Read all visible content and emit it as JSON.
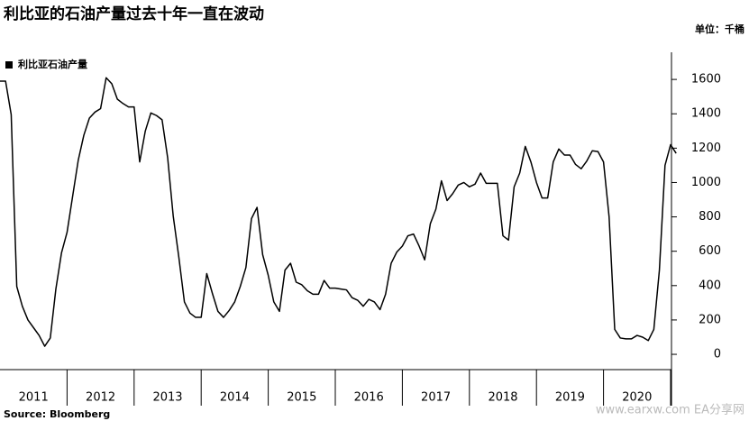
{
  "chart_data": {
    "type": "line",
    "title": "利比亚的石油产量过去十年一直在波动",
    "unit": "单位：千桶",
    "source": "Source: Bloomberg",
    "watermark": "www.earxw.com EA分享网",
    "x": [
      2011,
      2011.083,
      2011.167,
      2011.25,
      2011.333,
      2011.417,
      2011.5,
      2011.583,
      2011.667,
      2011.75,
      2011.833,
      2011.917,
      2012,
      2012.083,
      2012.167,
      2012.25,
      2012.333,
      2012.417,
      2012.5,
      2012.583,
      2012.667,
      2012.75,
      2012.833,
      2012.917,
      2013,
      2013.083,
      2013.167,
      2013.25,
      2013.333,
      2013.417,
      2013.5,
      2013.583,
      2013.667,
      2013.75,
      2013.833,
      2013.917,
      2014,
      2014.083,
      2014.167,
      2014.25,
      2014.333,
      2014.417,
      2014.5,
      2014.583,
      2014.667,
      2014.75,
      2014.833,
      2014.917,
      2015,
      2015.083,
      2015.167,
      2015.25,
      2015.333,
      2015.417,
      2015.5,
      2015.583,
      2015.667,
      2015.75,
      2015.833,
      2015.917,
      2016,
      2016.083,
      2016.167,
      2016.25,
      2016.333,
      2016.417,
      2016.5,
      2016.583,
      2016.667,
      2016.75,
      2016.833,
      2016.917,
      2017,
      2017.083,
      2017.167,
      2017.25,
      2017.333,
      2017.417,
      2017.5,
      2017.583,
      2017.667,
      2017.75,
      2017.833,
      2017.917,
      2018,
      2018.083,
      2018.167,
      2018.25,
      2018.333,
      2018.417,
      2018.5,
      2018.583,
      2018.667,
      2018.75,
      2018.833,
      2018.917,
      2019,
      2019.083,
      2019.167,
      2019.25,
      2019.333,
      2019.417,
      2019.5,
      2019.583,
      2019.667,
      2019.75,
      2019.833,
      2019.917,
      2020,
      2020.083,
      2020.167,
      2020.25,
      2020.333,
      2020.417,
      2020.5,
      2020.583,
      2020.667,
      2020.75,
      2020.833,
      2020.917,
      2021,
      2021.083
    ],
    "series": [
      {
        "name": "利比亚石油产量",
        "color": "#000000",
        "values": [
          1590,
          1590,
          1395,
          395,
          280,
          200,
          155,
          110,
          47,
          95,
          380,
          590,
          710,
          920,
          1130,
          1275,
          1375,
          1410,
          1430,
          1610,
          1575,
          1485,
          1460,
          1440,
          1440,
          1120,
          1300,
          1405,
          1390,
          1365,
          1145,
          805,
          565,
          305,
          240,
          215,
          215,
          470,
          355,
          250,
          215,
          255,
          305,
          395,
          505,
          790,
          855,
          580,
          460,
          305,
          250,
          490,
          530,
          420,
          405,
          370,
          350,
          350,
          430,
          385,
          385,
          380,
          375,
          330,
          315,
          280,
          320,
          305,
          260,
          350,
          530,
          595,
          630,
          690,
          700,
          630,
          550,
          760,
          845,
          1010,
          895,
          935,
          985,
          1000,
          975,
          990,
          1055,
          995,
          995,
          995,
          690,
          665,
          975,
          1055,
          1210,
          1120,
          1000,
          910,
          910,
          1120,
          1195,
          1160,
          1160,
          1105,
          1080,
          1125,
          1185,
          1180,
          1120,
          800,
          145,
          95,
          90,
          90,
          110,
          100,
          80,
          145,
          490,
          1100,
          1220,
          1170
        ]
      }
    ],
    "xlim": [
      2011,
      2021
    ],
    "xticks": [
      {
        "value": 2011.5,
        "label": "2011"
      },
      {
        "value": 2012.5,
        "label": "2012"
      },
      {
        "value": 2013.5,
        "label": "2013"
      },
      {
        "value": 2014.5,
        "label": "2014"
      },
      {
        "value": 2015.5,
        "label": "2015"
      },
      {
        "value": 2016.5,
        "label": "2016"
      },
      {
        "value": 2017.5,
        "label": "2017"
      },
      {
        "value": 2018.5,
        "label": "2018"
      },
      {
        "value": 2019.5,
        "label": "2019"
      },
      {
        "value": 2020.5,
        "label": "2020"
      }
    ],
    "ylim": [
      -89,
      1758
    ],
    "yticks": [
      0,
      200,
      400,
      600,
      800,
      1000,
      1200,
      1400,
      1600
    ],
    "y_axis_side": "right",
    "legend": "top-left"
  }
}
